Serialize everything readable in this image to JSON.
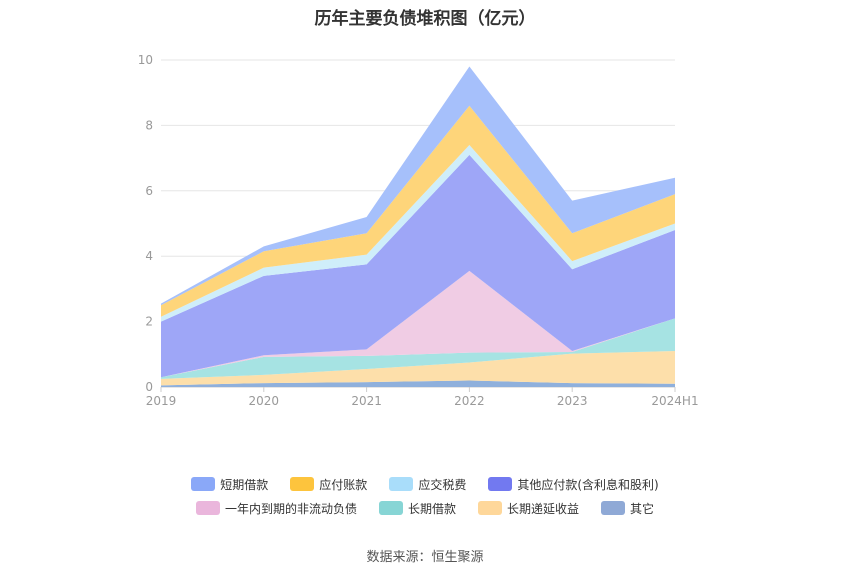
{
  "chart_data": {
    "type": "area",
    "stacked": true,
    "title": "历年主要负债堆积图（亿元）",
    "x": [
      "2019",
      "2020",
      "2021",
      "2022",
      "2023",
      "2024H1"
    ],
    "ylim": [
      0,
      10
    ],
    "yticks": [
      0,
      2,
      4,
      6,
      8,
      10
    ],
    "grid": true,
    "legend_position": "bottom",
    "series": [
      {
        "name": "其它",
        "color": "#8fb0dc",
        "values": [
          0.05,
          0.12,
          0.15,
          0.2,
          0.12,
          0.1
        ]
      },
      {
        "name": "长期递延收益",
        "color": "#fddfaa",
        "values": [
          0.2,
          0.25,
          0.4,
          0.55,
          0.9,
          1.0
        ]
      },
      {
        "name": "长期借款",
        "color": "#a6e3e3",
        "values": [
          0.05,
          0.55,
          0.4,
          0.3,
          0.05,
          1.0
        ]
      },
      {
        "name": "一年内到期的非流动负债",
        "color": "#f0cce4",
        "values": [
          0.0,
          0.05,
          0.2,
          2.5,
          0.03,
          0.0
        ]
      },
      {
        "name": "其他应付款(含利息和股利)",
        "color": "#9ea6f7",
        "values": [
          1.7,
          2.43,
          2.6,
          3.55,
          2.5,
          2.7
        ]
      },
      {
        "name": "应交税费",
        "color": "#cfeefa",
        "values": [
          0.15,
          0.25,
          0.3,
          0.3,
          0.25,
          0.2
        ]
      },
      {
        "name": "应付账款",
        "color": "#fed57a",
        "values": [
          0.35,
          0.5,
          0.65,
          1.2,
          0.85,
          0.9
        ]
      },
      {
        "name": "短期借款",
        "color": "#a6c0fb",
        "values": [
          0.05,
          0.15,
          0.5,
          1.2,
          1.0,
          0.5
        ]
      }
    ]
  },
  "legend": {
    "row1": [
      {
        "label": "短期借款",
        "color": "#8aa8f8"
      },
      {
        "label": "应付账款",
        "color": "#fdc43d"
      },
      {
        "label": "应交税费",
        "color": "#a9ddfa"
      },
      {
        "label": "其他应付款(含利息和股利)",
        "color": "#7279f0"
      }
    ],
    "row2": [
      {
        "label": "一年内到期的非流动负债",
        "color": "#eab6dc"
      },
      {
        "label": "长期借款",
        "color": "#87d5d5"
      },
      {
        "label": "长期递延收益",
        "color": "#fed79a"
      },
      {
        "label": "其它",
        "color": "#8fa9d6"
      }
    ]
  },
  "source": "数据来源：恒生聚源"
}
